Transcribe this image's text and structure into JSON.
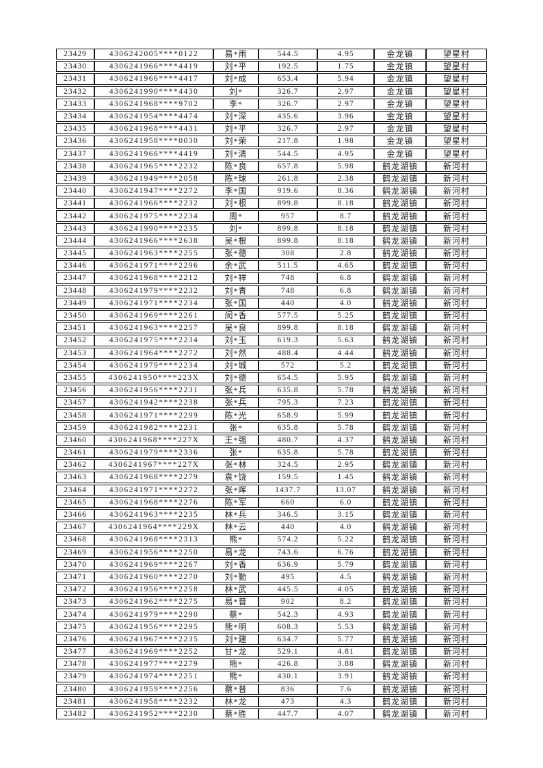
{
  "page": {
    "kind": "scanned-subsidy-roster-page",
    "visible_header": "",
    "visible_footer": ""
  },
  "colors": {
    "page_background": "#ffffff",
    "cell_background": "#fefefe",
    "border": "#161616",
    "text": "#1f1f1f"
  },
  "table": {
    "column_names": [
      "serial-number",
      "masked-id-number",
      "masked-name",
      "subsidy-amount",
      "area-mu",
      "town",
      "village"
    ],
    "rows": [
      [
        "23429",
        "4306242005****0122",
        "易*雨",
        "544.5",
        "4.95",
        "金龙镇",
        "望星村"
      ],
      [
        "23430",
        "4306241966****4419",
        "刘*平",
        "192.5",
        "1.75",
        "金龙镇",
        "望星村"
      ],
      [
        "23431",
        "4306241966****4417",
        "刘*成",
        "653.4",
        "5.94",
        "金龙镇",
        "望星村"
      ],
      [
        "23432",
        "4306241990****4430",
        "刘*",
        "326.7",
        "2.97",
        "金龙镇",
        "望星村"
      ],
      [
        "23433",
        "4306241968****9702",
        "李*",
        "326.7",
        "2.97",
        "金龙镇",
        "望星村"
      ],
      [
        "23434",
        "4306241954****4474",
        "刘*深",
        "435.6",
        "3.96",
        "金龙镇",
        "望星村"
      ],
      [
        "23435",
        "4306241968****4431",
        "刘*平",
        "326.7",
        "2.97",
        "金龙镇",
        "望星村"
      ],
      [
        "23436",
        "4306241958****0030",
        "刘*荣",
        "217.8",
        "1.98",
        "金龙镇",
        "望星村"
      ],
      [
        "23437",
        "4306241966****4419",
        "刘*清",
        "544.5",
        "4.95",
        "金龙镇",
        "望星村"
      ],
      [
        "23438",
        "4306241965****2232",
        "陈*良",
        "657.8",
        "5.98",
        "鹤龙湖镇",
        "新河村"
      ],
      [
        "23439",
        "4306241949****2058",
        "陈*球",
        "261.8",
        "2.38",
        "鹤龙湖镇",
        "新河村"
      ],
      [
        "23440",
        "4306241947****2272",
        "李*国",
        "919.6",
        "8.36",
        "鹤龙湖镇",
        "新河村"
      ],
      [
        "23441",
        "4306241966****2232",
        "刘*根",
        "899.8",
        "8.18",
        "鹤龙湖镇",
        "新河村"
      ],
      [
        "23442",
        "4306241975****2234",
        "周*",
        "957",
        "8.7",
        "鹤龙湖镇",
        "新河村"
      ],
      [
        "23443",
        "4306241990****2235",
        "刘*",
        "899.8",
        "8.18",
        "鹤龙湖镇",
        "新河村"
      ],
      [
        "23444",
        "4306241966****2638",
        "吴*根",
        "899.8",
        "8.18",
        "鹤龙湖镇",
        "新河村"
      ],
      [
        "23445",
        "4306241963****2255",
        "张*德",
        "308",
        "2.8",
        "鹤龙湖镇",
        "新河村"
      ],
      [
        "23446",
        "4306241971****2296",
        "余*武",
        "511.5",
        "4.65",
        "鹤龙湖镇",
        "新河村"
      ],
      [
        "23447",
        "4306241968****2212",
        "刘*祥",
        "748",
        "6.8",
        "鹤龙湖镇",
        "新河村"
      ],
      [
        "23448",
        "4306241979****2232",
        "刘*青",
        "748",
        "6.8",
        "鹤龙湖镇",
        "新河村"
      ],
      [
        "23449",
        "4306241971****2234",
        "张*国",
        "440",
        "4.0",
        "鹤龙湖镇",
        "新河村"
      ],
      [
        "23450",
        "4306241969****2261",
        "闵*香",
        "577.5",
        "5.25",
        "鹤龙湖镇",
        "新河村"
      ],
      [
        "23451",
        "4306241963****2257",
        "吴*良",
        "899.8",
        "8.18",
        "鹤龙湖镇",
        "新河村"
      ],
      [
        "23452",
        "4306241975****2234",
        "刘*玉",
        "619.3",
        "5.63",
        "鹤龙湖镇",
        "新河村"
      ],
      [
        "23453",
        "4306241964****2272",
        "刘*然",
        "488.4",
        "4.44",
        "鹤龙湖镇",
        "新河村"
      ],
      [
        "23454",
        "4306241979****2234",
        "刘*城",
        "572",
        "5.2",
        "鹤龙湖镇",
        "新河村"
      ],
      [
        "23455",
        "4306241950****223X",
        "刘*德",
        "654.5",
        "5.95",
        "鹤龙湖镇",
        "新河村"
      ],
      [
        "23456",
        "4306241956****2231",
        "张*兵",
        "635.8",
        "5.78",
        "鹤龙湖镇",
        "新河村"
      ],
      [
        "23457",
        "4306241942****2238",
        "张*兵",
        "795.3",
        "7.23",
        "鹤龙湖镇",
        "新河村"
      ],
      [
        "23458",
        "4306241971****2299",
        "陈*光",
        "658.9",
        "5.99",
        "鹤龙湖镇",
        "新河村"
      ],
      [
        "23459",
        "4306241982****2231",
        "张*",
        "635.8",
        "5.78",
        "鹤龙湖镇",
        "新河村"
      ],
      [
        "23460",
        "4306241968****227X",
        "王*强",
        "480.7",
        "4.37",
        "鹤龙湖镇",
        "新河村"
      ],
      [
        "23461",
        "4306241979****2336",
        "张*",
        "635.8",
        "5.78",
        "鹤龙湖镇",
        "新河村"
      ],
      [
        "23462",
        "4306241967****227X",
        "张*林",
        "324.5",
        "2.95",
        "鹤龙湖镇",
        "新河村"
      ],
      [
        "23463",
        "4306241968****2279",
        "袁*饶",
        "159.5",
        "1.45",
        "鹤龙湖镇",
        "新河村"
      ],
      [
        "23464",
        "4306241971****2272",
        "张*晖",
        "1437.7",
        "13.07",
        "鹤龙湖镇",
        "新河村"
      ],
      [
        "23465",
        "4306241968****2276",
        "陈*军",
        "660",
        "6.0",
        "鹤龙湖镇",
        "新河村"
      ],
      [
        "23466",
        "4306241963****2235",
        "林*兵",
        "346.5",
        "3.15",
        "鹤龙湖镇",
        "新河村"
      ],
      [
        "23467",
        "4306241964****229X",
        "林*云",
        "440",
        "4.0",
        "鹤龙湖镇",
        "新河村"
      ],
      [
        "23468",
        "4306241968****2313",
        "熊*",
        "574.2",
        "5.22",
        "鹤龙湖镇",
        "新河村"
      ],
      [
        "23469",
        "4306241956****2250",
        "易*龙",
        "743.6",
        "6.76",
        "鹤龙湖镇",
        "新河村"
      ],
      [
        "23470",
        "4306241969****2267",
        "刘*香",
        "636.9",
        "5.79",
        "鹤龙湖镇",
        "新河村"
      ],
      [
        "23471",
        "4306241960****2270",
        "刘*勤",
        "495",
        "4.5",
        "鹤龙湖镇",
        "新河村"
      ],
      [
        "23472",
        "4306241956****2258",
        "林*武",
        "445.5",
        "4.05",
        "鹤龙湖镇",
        "新河村"
      ],
      [
        "23473",
        "4306241962****2275",
        "易*普",
        "902",
        "8.2",
        "鹤龙湖镇",
        "新河村"
      ],
      [
        "23474",
        "4306241979****2290",
        "蔡*",
        "542.3",
        "4.93",
        "鹤龙湖镇",
        "新河村"
      ],
      [
        "23475",
        "4306241956****2295",
        "熊*明",
        "608.3",
        "5.53",
        "鹤龙湖镇",
        "新河村"
      ],
      [
        "23476",
        "4306241967****2235",
        "刘*建",
        "634.7",
        "5.77",
        "鹤龙湖镇",
        "新河村"
      ],
      [
        "23477",
        "4306241969****2252",
        "甘*龙",
        "529.1",
        "4.81",
        "鹤龙湖镇",
        "新河村"
      ],
      [
        "23478",
        "4306241977****2279",
        "熊*",
        "426.8",
        "3.88",
        "鹤龙湖镇",
        "新河村"
      ],
      [
        "23479",
        "4306241974****2251",
        "熊*",
        "430.1",
        "3.91",
        "鹤龙湖镇",
        "新河村"
      ],
      [
        "23480",
        "4306241959****2256",
        "蔡*普",
        "836",
        "7.6",
        "鹤龙湖镇",
        "新河村"
      ],
      [
        "23481",
        "4306241958****2232",
        "林*龙",
        "473",
        "4.3",
        "鹤龙湖镇",
        "新河村"
      ],
      [
        "23482",
        "4306241952****2230",
        "蔡*胜",
        "447.7",
        "4.07",
        "鹤龙湖镇",
        "新河村"
      ]
    ]
  }
}
